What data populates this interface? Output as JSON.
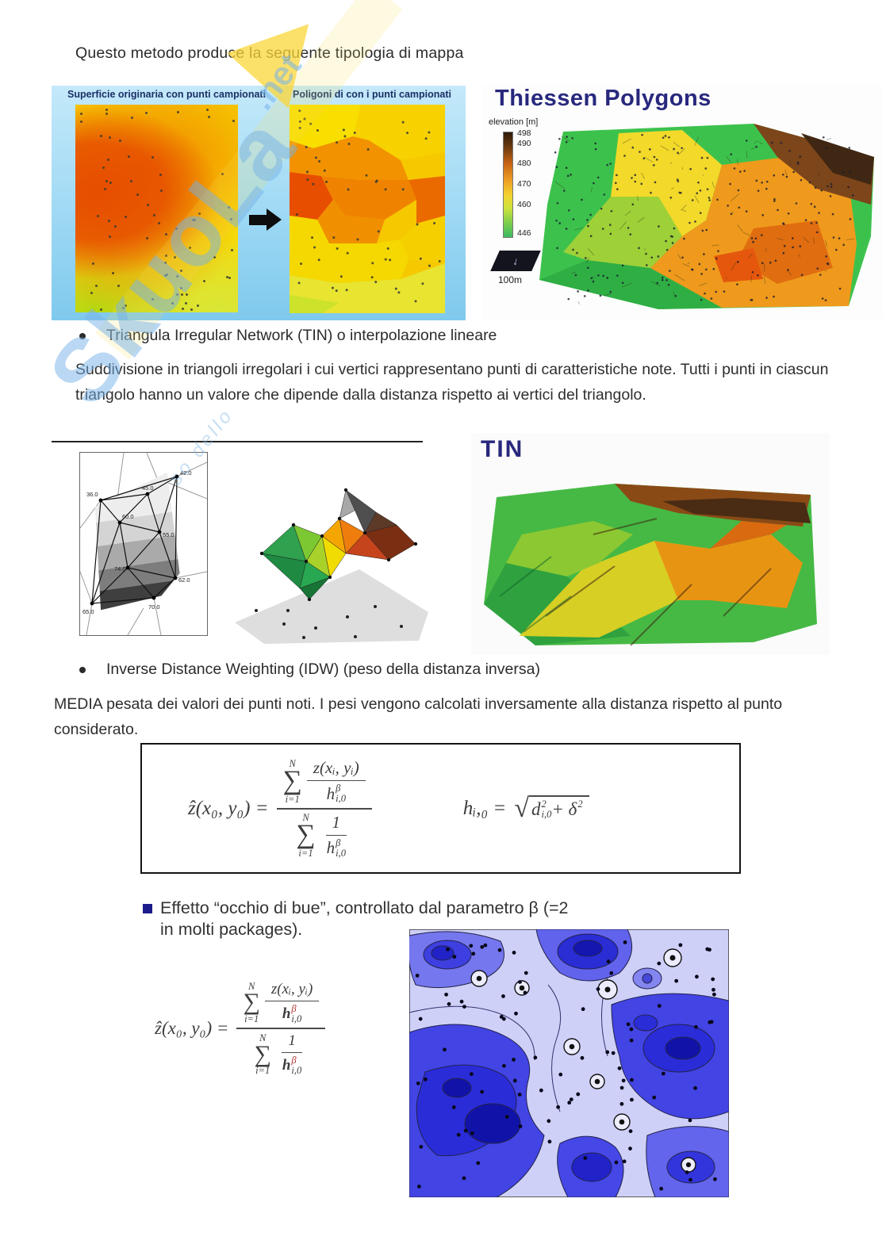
{
  "page": {
    "title": "Questo metodo produce la seguente tipologia di mappa"
  },
  "watermark": {
    "big": "SkuoLa",
    "suffix": ".net",
    "fragment": "so dello"
  },
  "thiessen_figure": {
    "left_map_label": "Superficie originaria con punti campionati",
    "right_map_label": "Poligoni di con i punti campionati",
    "title": "Thiessen Polygons",
    "legend_title": "elevation [m]",
    "legend_ticks": [
      "498",
      "490",
      "480",
      "470",
      "460",
      "446"
    ],
    "scale_label": "100m"
  },
  "tin_section": {
    "bullet": "Triangula Irregular Network (TIN) o interpolazione lineare",
    "paragraph": "Suddivisione in triangoli irregolari i cui vertici rappresentano punti di caratteristiche note. Tutti i punti in ciascun triangolo hanno un valore che dipende dalla distanza rispetto ai vertici del triangolo.",
    "figure_title": "TIN",
    "point_labels": [
      "42.0",
      "45.0",
      "36.0",
      "60.0",
      "55.0",
      "74.0",
      "62.0",
      "70.0",
      "65.0"
    ]
  },
  "idw_section": {
    "bullet": "Inverse Distance Weighting (IDW) (peso della distanza inversa)",
    "paragraph": "MEDIA pesata dei valori dei punti noti. I pesi vengono calcolati inversamente alla distanza rispetto al punto considerato.",
    "bullseye_line1": "Effetto “occhio di bue”, controllato dal parametro β (=2",
    "bullseye_line2": "in molti packages)."
  },
  "formula": {
    "lhs": "ẑ(x₀, y₀) =",
    "sum_symbol": "∑",
    "sum_top": "N",
    "sum_bottom": "i=1",
    "numerator": "z(xᵢ, yᵢ)",
    "h": "h",
    "beta": "β",
    "h_sub": "i,0",
    "one": "1",
    "h_lhs": "hᵢ,₀ =",
    "d": "d",
    "two": "2",
    "plus_delta": "+ δ"
  },
  "colors": {
    "accent_navy": "#28287e",
    "beta_red": "#b03434"
  }
}
